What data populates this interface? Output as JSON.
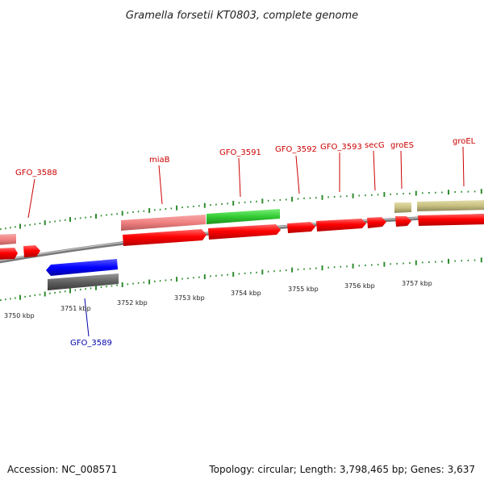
{
  "title": "Gramella forsetii KT0803, complete genome",
  "footer": {
    "accession": "Accession: NC_008571",
    "summary": "Topology: circular; Length: 3,798,465 bp; Genes: 3,637"
  },
  "colors": {
    "forward_cds": "#ff0000",
    "reverse_cds": "#0000ff",
    "forward_label": "#cc0000",
    "reverse_label": "#0000aa",
    "tick": "#2e8b2e",
    "backbone": "#7a7a7a",
    "pink_feature": "#f08080",
    "green_feature": "#33cc33",
    "olive_feature": "#c8c080",
    "gray_feature": "#606060"
  },
  "ruler": {
    "unit": "kbp",
    "labels": [
      "3750 kbp",
      "3751 kbp",
      "3752 kbp",
      "3753 kbp",
      "3754 kbp",
      "3755 kbp",
      "3756 kbp",
      "3757 kbp"
    ]
  },
  "gene_labels": [
    {
      "text": "GFO_3588",
      "strand": "forward"
    },
    {
      "text": "miaB",
      "strand": "forward"
    },
    {
      "text": "GFO_3591",
      "strand": "forward"
    },
    {
      "text": "GFO_3592",
      "strand": "forward"
    },
    {
      "text": "GFO_3593",
      "strand": "forward"
    },
    {
      "text": "secG",
      "strand": "forward"
    },
    {
      "text": "groES",
      "strand": "forward"
    },
    {
      "text": "groEL",
      "strand": "forward"
    },
    {
      "text": "GFO_3589",
      "strand": "reverse"
    }
  ]
}
